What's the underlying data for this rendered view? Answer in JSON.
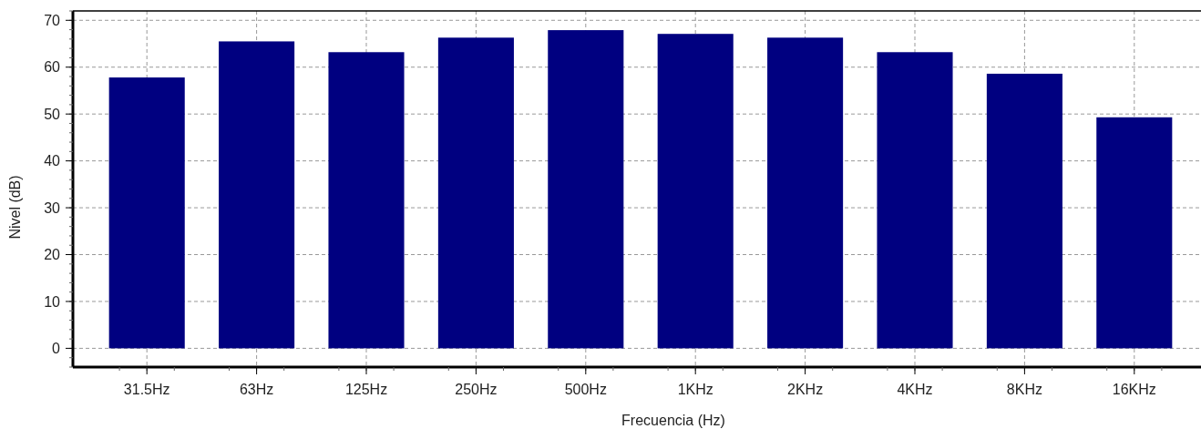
{
  "chart_data": {
    "type": "bar",
    "xlabel": "Frecuencia (Hz)",
    "ylabel": "Nivel (dB)",
    "categories": [
      "31.5Hz",
      "63Hz",
      "125Hz",
      "250Hz",
      "500Hz",
      "1KHz",
      "2KHz",
      "4KHz",
      "8KHz",
      "16KHz"
    ],
    "values": [
      57.8,
      65.5,
      63.2,
      66.3,
      67.9,
      67.1,
      66.3,
      63.2,
      58.6,
      49.3
    ],
    "color": "#000080",
    "ylim": [
      -4,
      72
    ],
    "yticks": [
      0,
      10,
      20,
      30,
      40,
      50,
      60,
      70
    ],
    "grid": true
  }
}
